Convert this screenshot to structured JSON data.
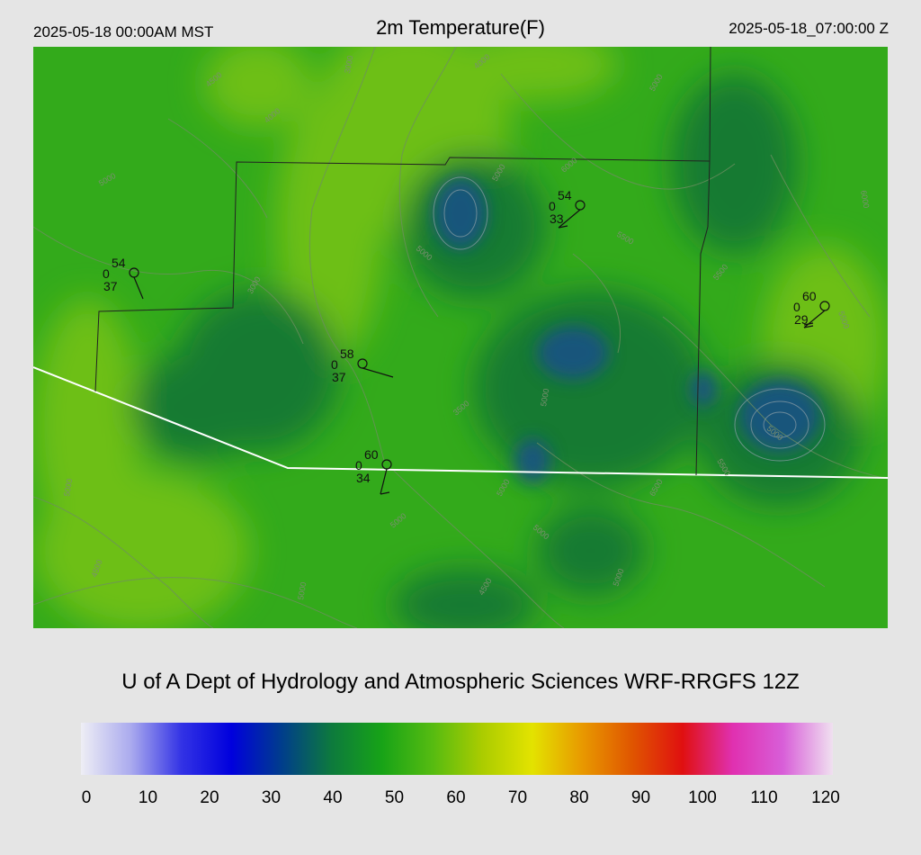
{
  "header": {
    "local_time": "2025-05-18 00:00AM MST",
    "title": "2m Temperature(F)",
    "utc_time": "2025-05-18_07:00:00 Z"
  },
  "credit": "U of A Dept of Hydrology and Atmospheric Sciences WRF-RRGFS 12Z",
  "colorbar": {
    "ticks": [
      "0",
      "10",
      "20",
      "30",
      "40",
      "50",
      "60",
      "70",
      "80",
      "90",
      "100",
      "110",
      "120"
    ],
    "stops": [
      "#eeeef5",
      "#aaaaee",
      "#3333e5",
      "#0000dd",
      "#003d8c",
      "#0d7a3d",
      "#17a317",
      "#55bb11",
      "#aacc00",
      "#e3e300",
      "#e89900",
      "#e05500",
      "#e01010",
      "#e030b0",
      "#d85ed8",
      "#f0e0f0"
    ]
  },
  "map": {
    "colors": {
      "base": "#33aa1b",
      "light": "#6dbf12",
      "dark": "#167a30",
      "darkest": "#1b4f88",
      "state_line": "#ffffff",
      "county_line": "#222222",
      "contour": "#6e8f60"
    },
    "contour_labels": [
      "4000",
      "3000",
      "4000",
      "5000",
      "5000",
      "5500",
      "5000",
      "5000",
      "5500",
      "5000",
      "5500",
      "6000",
      "6500",
      "5000",
      "5000",
      "5000",
      "4500",
      "5000",
      "4500",
      "5000",
      "4500",
      "3000",
      "3500",
      "5000",
      "5000",
      "5500",
      "6000"
    ],
    "stations": [
      {
        "temp": "54",
        "vis": "0",
        "dew": "37"
      },
      {
        "temp": "54",
        "vis": "0",
        "dew": "33"
      },
      {
        "temp": "58",
        "vis": "0",
        "dew": "37"
      },
      {
        "temp": "60",
        "vis": "0",
        "dew": "34"
      },
      {
        "temp": "60",
        "vis": "0",
        "dew": "29"
      }
    ]
  }
}
